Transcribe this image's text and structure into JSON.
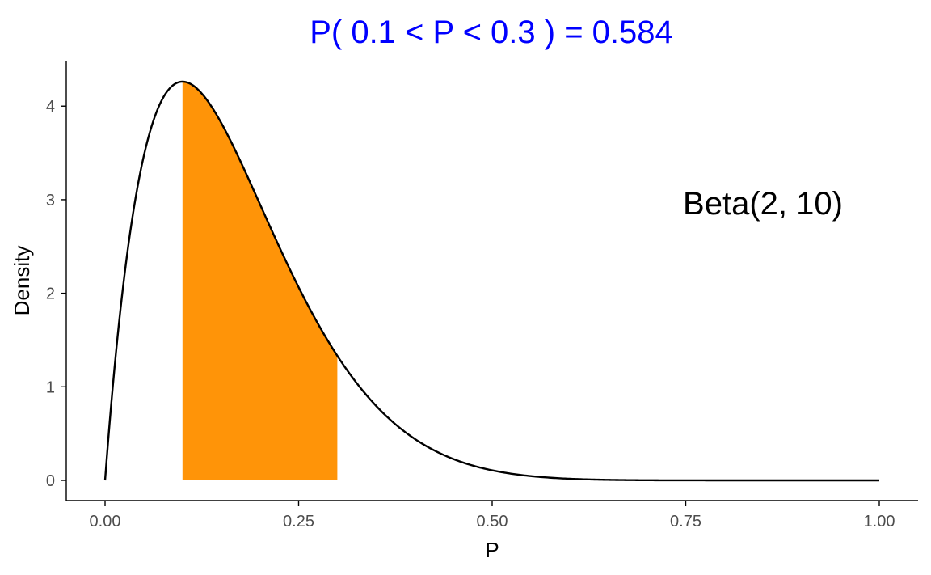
{
  "chart_data": {
    "type": "area",
    "title": "P( 0.1 < P <  0.3 ) = 0.584",
    "xlabel": "P",
    "ylabel": "Density",
    "annotation": "Beta(2, 10)",
    "distribution": {
      "family": "Beta",
      "alpha": 2,
      "beta": 10
    },
    "shaded_interval": {
      "lower": 0.1,
      "upper": 0.3,
      "probability": 0.584
    },
    "xlim": [
      0,
      1
    ],
    "ylim": [
      0,
      4.27
    ],
    "x_ticks": [
      0,
      0.25,
      0.5,
      0.75,
      1
    ],
    "x_tick_labels": [
      "0.00",
      "0.25",
      "0.50",
      "0.75",
      "1.00"
    ],
    "y_ticks": [
      0,
      1,
      2,
      3,
      4
    ],
    "y_tick_labels": [
      "0",
      "1",
      "2",
      "3",
      "4"
    ],
    "grid": false,
    "series": [
      {
        "x": [
          0,
          0.025,
          0.05,
          0.075,
          0.1,
          0.125,
          0.15,
          0.175,
          0.2,
          0.225,
          0.25,
          0.275,
          0.3,
          0.35,
          0.4,
          0.45,
          0.5,
          0.55,
          0.6,
          0.7,
          0.8,
          0.9,
          1
        ],
        "values": [
          0,
          2.19,
          3.48,
          4.08,
          4.26,
          4.16,
          3.88,
          3.49,
          3.06,
          2.62,
          2.2,
          1.82,
          1.49,
          0.93,
          0.55,
          0.3,
          0.15,
          0.07,
          0.03,
          0.005,
          0.0005,
          4e-06,
          0
        ]
      }
    ],
    "colors": {
      "title": "#0000ff",
      "fill": "#ff9408",
      "curve": "#000000",
      "tick_label": "#4d4d4d"
    }
  }
}
